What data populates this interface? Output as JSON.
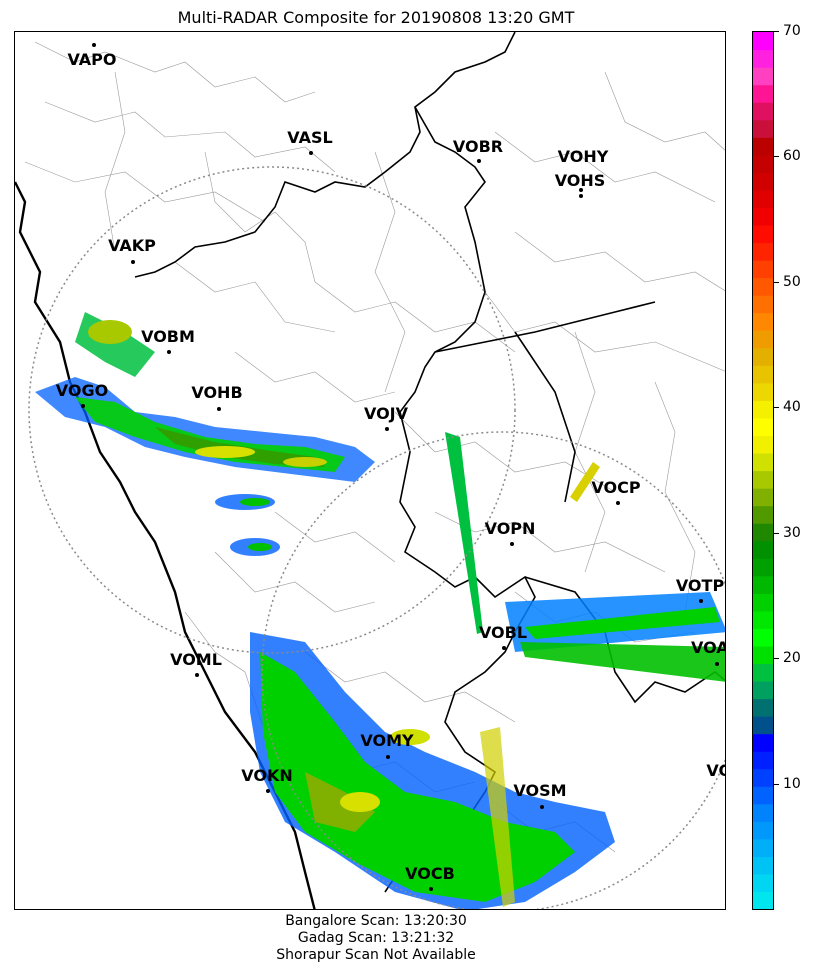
{
  "title": "Multi-RADAR Composite for 20190808 13:20 GMT",
  "stations": [
    {
      "code": "VAPO"
    },
    {
      "code": "VASL"
    },
    {
      "code": "VOBR"
    },
    {
      "code": "VOHY"
    },
    {
      "code": "VOHS"
    },
    {
      "code": "VAKP"
    },
    {
      "code": "VOBM"
    },
    {
      "code": "VOGO"
    },
    {
      "code": "VOHB"
    },
    {
      "code": "VOJV"
    },
    {
      "code": "VOCP"
    },
    {
      "code": "VOPN"
    },
    {
      "code": "VOTP"
    },
    {
      "code": "VOBL"
    },
    {
      "code": "VOAR"
    },
    {
      "code": "VOML"
    },
    {
      "code": "VOMY"
    },
    {
      "code": "VOKN"
    },
    {
      "code": "VOSM"
    },
    {
      "code": "VOPC"
    },
    {
      "code": "VOCB"
    }
  ],
  "colorbar": {
    "min": 0,
    "max": 70,
    "ticks": [
      "10",
      "20",
      "30",
      "40",
      "50",
      "60",
      "70"
    ],
    "colors": [
      "#00e5ee",
      "#00d5f2",
      "#00c3f5",
      "#00aff8",
      "#0099fb",
      "#0083fd",
      "#0063ff",
      "#0040ff",
      "#0020ff",
      "#0000ff",
      "#00508c",
      "#007070",
      "#00a060",
      "#00c040",
      "#00e000",
      "#00ff00",
      "#00e800",
      "#00d000",
      "#00b800",
      "#00a000",
      "#009000",
      "#208800",
      "#509a00",
      "#80b000",
      "#a8c800",
      "#d0e000",
      "#f0f000",
      "#ffff00",
      "#f5f000",
      "#ecd800",
      "#e8c400",
      "#e4b000",
      "#ee9c00",
      "#ff8800",
      "#ff7000",
      "#ff5800",
      "#ff4000",
      "#ff2400",
      "#ff0c00",
      "#f00000",
      "#e00000",
      "#d00000",
      "#c40000",
      "#bb0000",
      "#c8103a",
      "#e01060",
      "#ff1494",
      "#ff40c0",
      "#ff20e0",
      "#ff00ff"
    ]
  },
  "footer": {
    "line1": "Bangalore Scan: 13:20:30",
    "line2": "Gadag Scan: 13:21:32",
    "line3": "Shorapur Scan Not Available"
  }
}
